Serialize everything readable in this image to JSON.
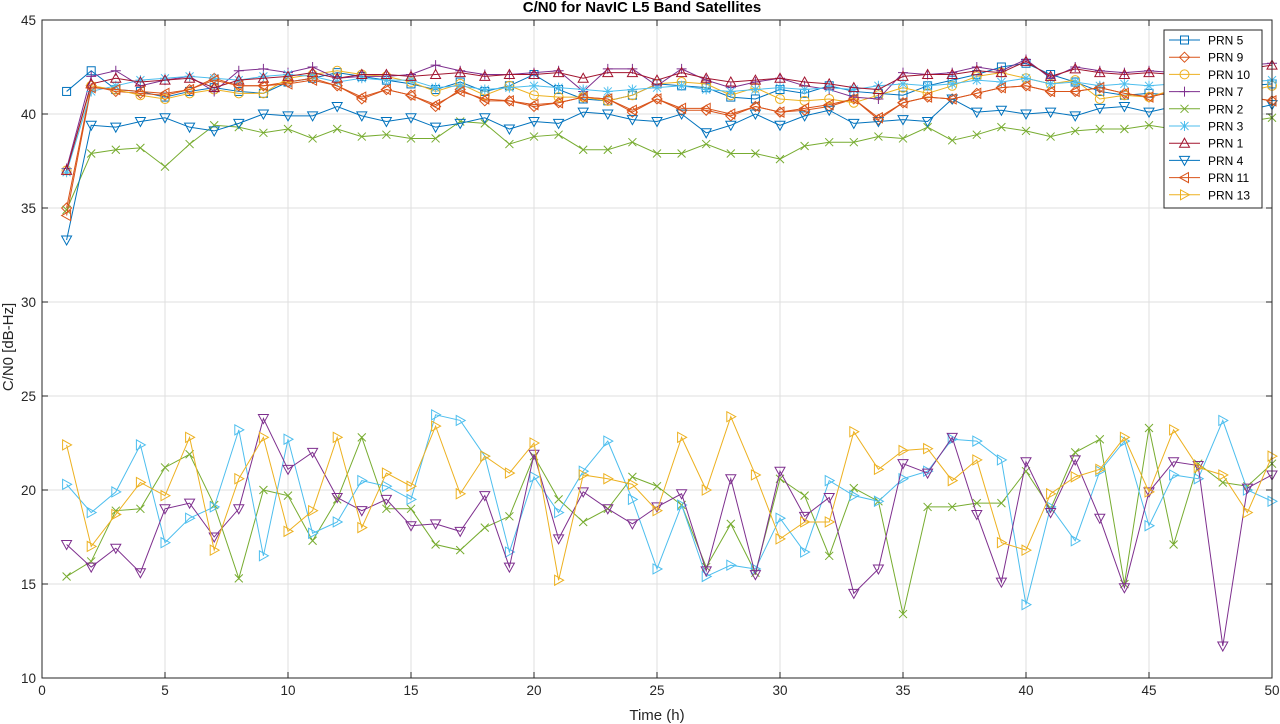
{
  "chart_data": {
    "type": "line",
    "title": "C/N0 for NavIC L5 Band Satellites",
    "xlabel": "Time (h)",
    "ylabel": "C/N0 [dB-Hz]",
    "xlim": [
      0,
      50
    ],
    "ylim": [
      10,
      45
    ],
    "xticks": [
      0,
      5,
      10,
      15,
      20,
      25,
      30,
      35,
      40,
      45,
      50
    ],
    "yticks": [
      10,
      15,
      20,
      25,
      30,
      35,
      40,
      45
    ],
    "grid": true,
    "legend_position": "top-right",
    "x": [
      1,
      2,
      3,
      4,
      5,
      6,
      7,
      8,
      9,
      10,
      11,
      12,
      13,
      14,
      15,
      16,
      17,
      18,
      19,
      20,
      21,
      22,
      23,
      24,
      25,
      26,
      27,
      28,
      29,
      30,
      31,
      32,
      33,
      34,
      35,
      36,
      37,
      38,
      39,
      40,
      41,
      42,
      43,
      44,
      45,
      46,
      47,
      48,
      49,
      50
    ],
    "series": [
      {
        "name": "PRN 5",
        "color": "#0072BD",
        "marker": "square",
        "values": [
          41.2,
          42.3,
          41.3,
          41.2,
          40.9,
          41.2,
          41.4,
          41.2,
          41.1,
          41.7,
          41.9,
          42.2,
          42.0,
          41.8,
          41.6,
          41.3,
          41.7,
          41.2,
          41.5,
          42.1,
          41.3,
          40.8,
          40.7,
          41.0,
          41.6,
          41.5,
          41.4,
          40.9,
          40.8,
          41.3,
          41.1,
          41.5,
          41.2,
          41.1,
          41.0,
          41.5,
          41.8,
          42.1,
          42.5,
          42.7,
          42.1,
          41.7,
          41.2,
          41.0,
          41.1,
          41.0,
          41.3,
          41.3,
          41.5,
          41.6
        ]
      },
      {
        "name": "PRN 9",
        "color": "#D95319",
        "marker": "diamond",
        "values": [
          35.0,
          41.5,
          41.2,
          41.1,
          41.0,
          41.3,
          41.9,
          41.5,
          41.5,
          41.7,
          41.9,
          41.5,
          40.8,
          41.3,
          41.0,
          40.4,
          41.3,
          40.7,
          40.7,
          40.4,
          40.6,
          40.9,
          40.8,
          40.1,
          40.8,
          40.2,
          40.2,
          39.9,
          40.4,
          40.1,
          40.2,
          40.4,
          40.8,
          39.7,
          40.6,
          40.9,
          40.8,
          41.1,
          41.4,
          41.5,
          41.2,
          41.2,
          41.4,
          41.1,
          40.9,
          41.2,
          41.4,
          41.6,
          40.9,
          40.7
        ]
      },
      {
        "name": "PRN 10",
        "color": "#EDB120",
        "marker": "circle",
        "values": [
          37.0,
          41.5,
          41.3,
          41.0,
          40.8,
          41.1,
          41.3,
          41.1,
          41.1,
          41.9,
          42.1,
          42.3,
          42.1,
          42.0,
          41.7,
          41.2,
          41.6,
          41.0,
          41.5,
          41.0,
          40.9,
          40.9,
          40.7,
          41.0,
          41.6,
          41.7,
          41.6,
          41.0,
          41.4,
          40.8,
          40.7,
          40.8,
          40.6,
          41.0,
          41.4,
          41.1,
          41.5,
          42.0,
          42.2,
          41.9,
          41.6,
          41.8,
          40.8,
          41.0,
          40.9,
          41.3,
          41.4,
          41.2,
          41.2,
          41.5
        ]
      },
      {
        "name": "PRN 7",
        "color": "#7E2F8E",
        "marker": "plus",
        "values": [
          37.1,
          42.0,
          42.3,
          41.5,
          41.8,
          42.0,
          41.2,
          42.3,
          42.4,
          42.2,
          42.5,
          41.9,
          42.0,
          42.0,
          42.1,
          42.6,
          42.3,
          42.1,
          42.1,
          42.2,
          42.3,
          41.2,
          42.4,
          42.4,
          41.5,
          42.4,
          41.8,
          41.4,
          41.7,
          41.9,
          41.5,
          41.3,
          40.9,
          40.8,
          42.2,
          42.1,
          42.2,
          42.5,
          42.3,
          42.9,
          41.9,
          42.5,
          42.3,
          42.2,
          42.3,
          42.2,
          42.3,
          42.4,
          42.6,
          42.7
        ]
      },
      {
        "name": "PRN 2",
        "color": "#77AC30",
        "marker": "x",
        "values": [
          34.9,
          37.9,
          38.1,
          38.2,
          37.2,
          38.4,
          39.4,
          39.3,
          39.0,
          39.2,
          38.7,
          39.2,
          38.8,
          38.9,
          38.7,
          38.7,
          39.6,
          39.5,
          38.4,
          38.8,
          38.9,
          38.1,
          38.1,
          38.5,
          37.9,
          37.9,
          38.4,
          37.9,
          37.9,
          37.6,
          38.3,
          38.5,
          38.5,
          38.8,
          38.7,
          39.3,
          38.6,
          38.9,
          39.3,
          39.1,
          38.8,
          39.1,
          39.2,
          39.2,
          39.4,
          39.2,
          39.5,
          39.6,
          39.6,
          39.8
        ]
      },
      {
        "name": "PRN 3",
        "color": "#4DBEEE",
        "marker": "asterisk",
        "values": [
          36.9,
          41.2,
          41.5,
          41.8,
          41.9,
          42.0,
          41.9,
          41.8,
          42.0,
          42.1,
          42.0,
          41.7,
          41.9,
          41.8,
          41.8,
          41.4,
          41.5,
          41.3,
          41.4,
          41.5,
          41.4,
          41.3,
          41.2,
          41.3,
          41.4,
          41.5,
          41.3,
          41.2,
          41.3,
          41.4,
          41.3,
          41.4,
          41.3,
          41.5,
          41.6,
          41.5,
          41.6,
          41.8,
          41.7,
          41.9,
          41.6,
          41.7,
          41.5,
          41.6,
          41.5,
          41.6,
          41.7,
          41.6,
          41.7,
          41.8
        ]
      },
      {
        "name": "PRN 1",
        "color": "#A2142F",
        "marker": "triangle-up",
        "values": [
          37.0,
          41.6,
          41.9,
          41.7,
          41.8,
          41.9,
          41.4,
          41.8,
          41.9,
          42.0,
          42.2,
          41.9,
          42.1,
          42.1,
          42.0,
          42.1,
          42.2,
          42.0,
          42.1,
          42.1,
          42.2,
          41.9,
          42.2,
          42.2,
          41.8,
          42.2,
          41.9,
          41.7,
          41.8,
          41.9,
          41.7,
          41.6,
          41.4,
          41.3,
          42.0,
          42.1,
          42.1,
          42.3,
          42.2,
          42.8,
          42.0,
          42.4,
          42.2,
          42.1,
          42.2,
          42.1,
          42.3,
          42.3,
          42.4,
          42.6
        ]
      },
      {
        "name": "PRN 4",
        "color": "#0072BD",
        "marker": "triangle-down",
        "values": [
          33.3,
          39.4,
          39.3,
          39.6,
          39.8,
          39.3,
          39.1,
          39.5,
          40.0,
          39.9,
          39.9,
          40.4,
          39.9,
          39.6,
          39.8,
          39.3,
          39.5,
          39.8,
          39.2,
          39.6,
          39.5,
          40.1,
          40.0,
          39.7,
          39.6,
          40.0,
          39.0,
          39.4,
          40.0,
          39.4,
          39.9,
          40.2,
          39.5,
          39.6,
          39.7,
          39.6,
          40.8,
          40.1,
          40.2,
          40.0,
          40.1,
          39.9,
          40.3,
          40.4,
          40.1,
          40.4,
          40.5,
          40.3,
          40.2,
          40.5
        ]
      },
      {
        "name": "PRN 11",
        "color": "#D95319",
        "marker": "triangle-left",
        "values": [
          34.6,
          41.4,
          41.3,
          41.2,
          41.1,
          41.3,
          41.8,
          41.5,
          41.5,
          41.6,
          41.8,
          41.5,
          40.9,
          41.3,
          41.0,
          40.5,
          41.2,
          40.8,
          40.7,
          40.5,
          40.6,
          40.9,
          40.8,
          40.2,
          40.8,
          40.3,
          40.3,
          40.0,
          40.4,
          40.1,
          40.3,
          40.5,
          40.8,
          39.8,
          40.6,
          40.9,
          40.8,
          41.1,
          41.4,
          41.5,
          41.2,
          41.2,
          41.4,
          41.1,
          40.9,
          41.2,
          41.4,
          41.6,
          40.9,
          40.7
        ]
      },
      {
        "name": "PRN 13",
        "color": "#EDB120",
        "marker": "triangle-right",
        "values": [
          22.4,
          17.0,
          18.7,
          20.4,
          19.7,
          22.8,
          16.8,
          20.6,
          22.8,
          17.8,
          18.9,
          22.8,
          18.0,
          20.9,
          20.2,
          23.4,
          19.8,
          21.8,
          20.9,
          22.5,
          15.2,
          20.8,
          20.6,
          20.3,
          18.9,
          22.8,
          20.0,
          23.9,
          20.8,
          17.4,
          18.3,
          18.3,
          23.1,
          21.1,
          22.1,
          22.2,
          20.5,
          21.6,
          17.2,
          16.8,
          19.8,
          20.7,
          21.1,
          22.8,
          19.9,
          23.2,
          21.2,
          20.8,
          18.8,
          21.8
        ]
      }
    ],
    "overlaid_series_low": [
      {
        "name": "PRN 2 (low band)",
        "color": "#77AC30",
        "values": [
          15.4,
          16.2,
          18.9,
          19.0,
          21.2,
          21.9,
          19.2,
          15.3,
          20.0,
          19.7,
          17.3,
          19.5,
          22.8,
          19.0,
          19.0,
          17.1,
          16.8,
          18.0,
          18.6,
          21.8,
          19.5,
          18.3,
          19.0,
          20.7,
          20.2,
          19.2,
          15.9,
          18.2,
          15.6,
          20.6,
          19.7,
          16.5,
          20.1,
          19.4,
          13.4,
          19.1,
          19.1,
          19.3,
          19.3,
          21.0,
          19.0,
          22.0,
          22.7,
          15.0,
          23.3,
          17.1,
          21.4,
          20.4,
          20.2,
          21.4
        ]
      },
      {
        "name": "PRN 3 (low band)",
        "color": "#4DBEEE",
        "values": [
          20.3,
          18.8,
          19.9,
          22.4,
          17.2,
          18.5,
          19.1,
          23.2,
          16.5,
          22.7,
          17.7,
          18.3,
          20.5,
          20.2,
          19.5,
          24.0,
          23.7,
          21.8,
          16.7,
          20.7,
          18.8,
          21.0,
          22.6,
          19.5,
          15.8,
          19.2,
          15.4,
          16.0,
          15.8,
          18.5,
          16.7,
          20.5,
          19.7,
          19.4,
          20.6,
          21.0,
          22.7,
          22.6,
          21.6,
          13.9,
          19.1,
          17.3,
          21.0,
          22.6,
          18.1,
          20.8,
          20.6,
          23.7,
          20.0,
          19.4
        ]
      },
      {
        "name": "PRN 7 (low band)",
        "color": "#7E2F8E",
        "values": [
          17.1,
          15.9,
          16.9,
          15.6,
          19.0,
          19.3,
          17.5,
          19.0,
          23.8,
          21.1,
          22.0,
          19.6,
          18.9,
          19.5,
          18.1,
          18.2,
          17.8,
          19.7,
          15.9,
          21.9,
          17.4,
          19.9,
          19.0,
          18.2,
          19.1,
          19.8,
          15.7,
          20.6,
          15.5,
          21.0,
          18.6,
          19.6,
          14.5,
          15.8,
          21.4,
          20.9,
          22.8,
          18.7,
          15.1,
          21.5,
          18.8,
          21.6,
          18.5,
          14.8,
          19.9,
          21.5,
          21.3,
          11.7,
          20.1,
          20.8
        ]
      }
    ]
  }
}
